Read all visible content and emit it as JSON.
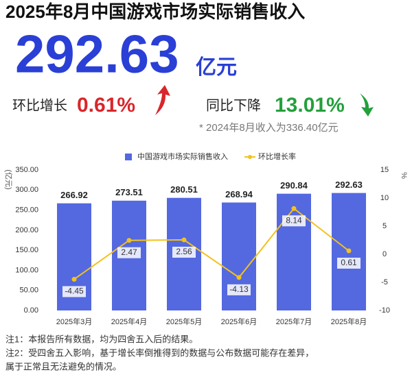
{
  "header": {
    "title": "2025年8月中国游戏市场实际销售收入",
    "value": "292.63",
    "unit": "亿元"
  },
  "stats": {
    "mom_label": "环比增长",
    "mom_value": "0.61%",
    "yoy_label": "同比下降",
    "yoy_value": "13.01%",
    "footnote": "* 2024年8月收入为336.40亿元"
  },
  "chart_data": {
    "type": "bar",
    "categories": [
      "2025年3月",
      "2025年4月",
      "2025年5月",
      "2025年6月",
      "2025年7月",
      "2025年8月"
    ],
    "series": [
      {
        "name": "中国游戏市场实际销售收入",
        "type": "bar",
        "color": "#5468e0",
        "values": [
          266.92,
          273.51,
          280.51,
          268.94,
          290.84,
          292.63
        ]
      },
      {
        "name": "环比增长率",
        "type": "line",
        "axis": "y2",
        "color": "#f2c21b",
        "values": [
          -4.45,
          2.47,
          2.56,
          -4.13,
          8.14,
          0.61
        ]
      }
    ],
    "y_label": "(亿元)",
    "y2_label": "%",
    "ylim": [
      0,
      350
    ],
    "yticks": [
      {
        "value": 0,
        "label": "0.00"
      },
      {
        "value": 50,
        "label": "50.00"
      },
      {
        "value": 100,
        "label": "100.00"
      },
      {
        "value": 150,
        "label": "150.00"
      },
      {
        "value": 200,
        "label": "200.00"
      },
      {
        "value": 250,
        "label": "250.00"
      },
      {
        "value": 300,
        "label": "300.00"
      },
      {
        "value": 350,
        "label": "350.00"
      }
    ],
    "y2lim": [
      -10,
      15
    ],
    "y2ticks": [
      -10,
      -5,
      0,
      5,
      10,
      15
    ]
  },
  "notes": [
    "注1：本报告所有数据，均为四舍五入后的结果。",
    "注2：受四舍五入影响，基于增长率倒推得到的数据与公布数据可能存在差异，",
    "属于正常且无法避免的情况。"
  ]
}
